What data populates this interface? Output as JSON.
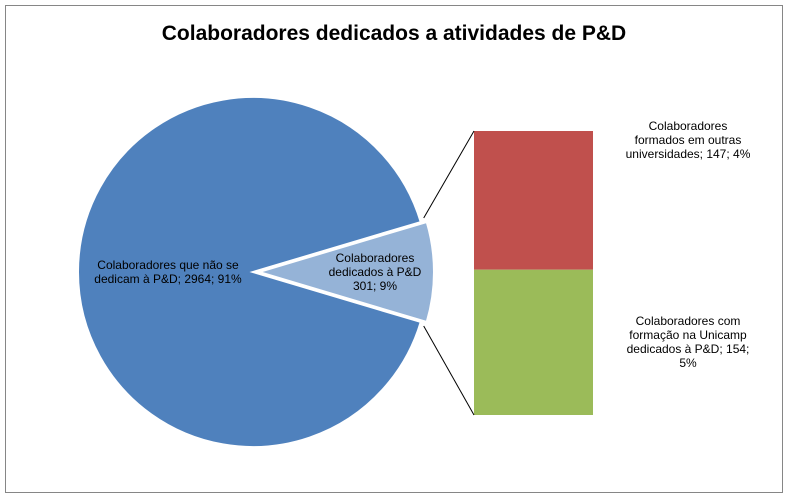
{
  "chart_data": {
    "type": "bar-of-pie",
    "title": "Colaboradores dedicados a atividades de P&D",
    "categories": [
      "Colaboradores que não se dedicam à P&D",
      "Colaboradores dedicados à P&D"
    ],
    "values": [
      2964,
      301
    ],
    "value_labels": [
      "Colaboradores que não se dedicam à P&D; 2964; 91%",
      "Colaboradores dedicados à P&D 301; 9%"
    ],
    "colors": [
      "#4f81bd",
      "#95b3d7"
    ],
    "breakdown": {
      "categories": [
        "Colaboradores formados em outras universidades",
        "Colaboradores com formação na Unicamp dedicados à P&D"
      ],
      "values": [
        147,
        154
      ],
      "value_labels": [
        "Colaboradores formados em outras universidades; 147; 4%",
        "Colaboradores com formação na Unicamp dedicados à P&D; 154; 5%"
      ],
      "colors": [
        "#c0504d",
        "#9bbb59"
      ]
    }
  }
}
